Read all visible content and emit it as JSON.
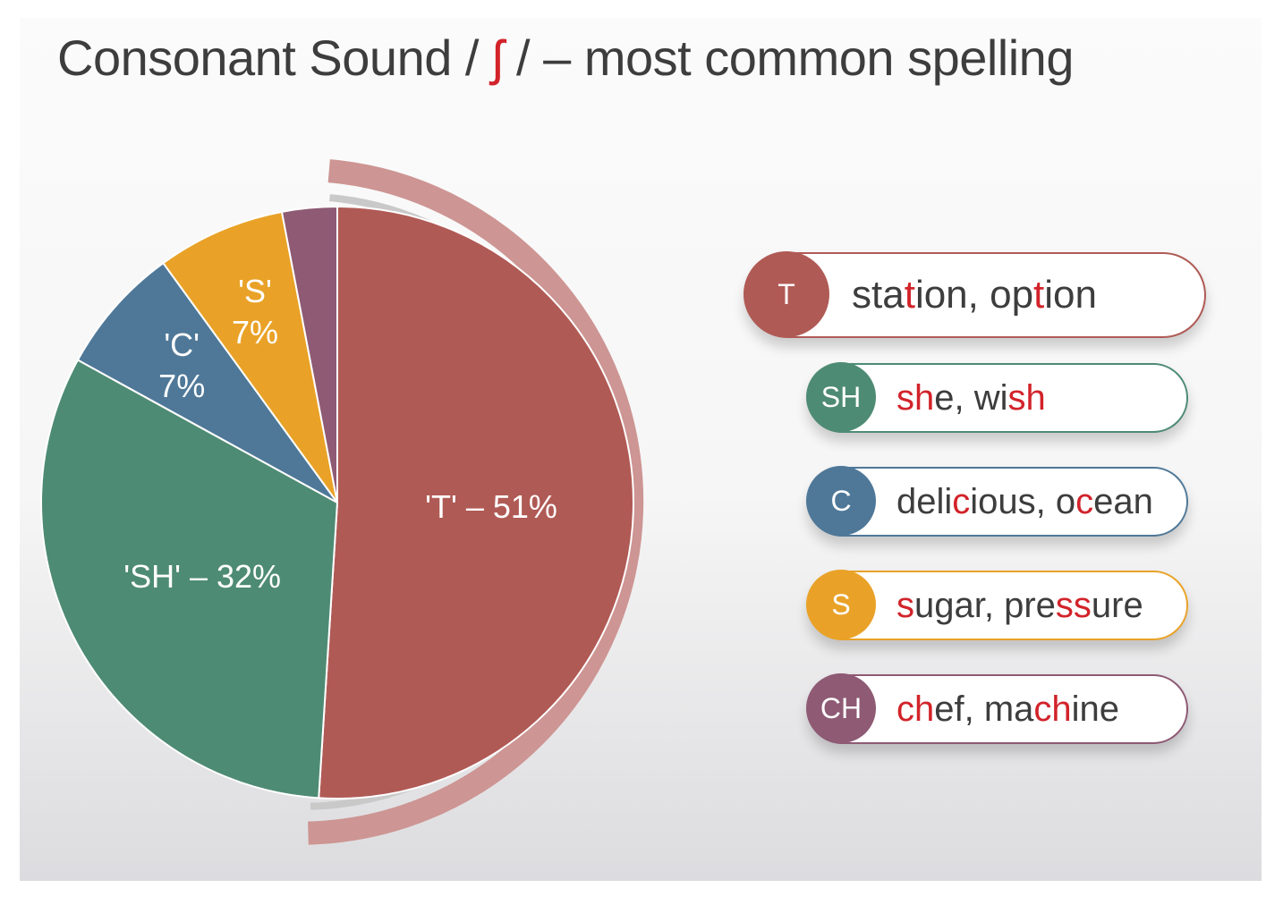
{
  "title": {
    "before": "Consonant Sound / ",
    "ipa": "ʃ",
    "after": " / – most common spelling"
  },
  "chart_data": {
    "type": "pie",
    "title": "Consonant Sound / ʃ / – most common spelling",
    "slices": [
      {
        "label": "'T'",
        "value": 51,
        "value_label": "51%",
        "display": "'T' – 51%",
        "color": "#b05a55"
      },
      {
        "label": "'SH'",
        "value": 32,
        "value_label": "32%",
        "display": "'SH' – 32%",
        "color": "#4e8b74"
      },
      {
        "label": "'C'",
        "value": 7,
        "value_label": "7%",
        "display": "'C'\n7%",
        "color": "#4f7898"
      },
      {
        "label": "'S'",
        "value": 7,
        "value_label": "7%",
        "display": "'S'\n7%",
        "color": "#e9a227"
      },
      {
        "label": "'CH'",
        "value": 3,
        "value_label": "",
        "display": "",
        "color": "#8e5a74"
      }
    ]
  },
  "legend": [
    {
      "badge": "T",
      "color": "#b05a55",
      "parts": [
        {
          "t": "sta"
        },
        {
          "t": "t",
          "hl": true
        },
        {
          "t": "ion, op"
        },
        {
          "t": "t",
          "hl": true
        },
        {
          "t": "ion"
        }
      ]
    },
    {
      "badge": "SH",
      "color": "#4e8b74",
      "parts": [
        {
          "t": "sh",
          "hl": true
        },
        {
          "t": "e, wi"
        },
        {
          "t": "sh",
          "hl": true
        }
      ]
    },
    {
      "badge": "C",
      "color": "#4f7898",
      "parts": [
        {
          "t": "deli"
        },
        {
          "t": "c",
          "hl": true
        },
        {
          "t": "ious, o"
        },
        {
          "t": "c",
          "hl": true
        },
        {
          "t": "ean"
        }
      ]
    },
    {
      "badge": "S",
      "color": "#e9a227",
      "parts": [
        {
          "t": "s",
          "hl": true
        },
        {
          "t": "ugar, pre"
        },
        {
          "t": "ss",
          "hl": true
        },
        {
          "t": "ure"
        }
      ]
    },
    {
      "badge": "CH",
      "color": "#8e5a74",
      "parts": [
        {
          "t": "ch",
          "hl": true
        },
        {
          "t": "ef, ma"
        },
        {
          "t": "ch",
          "hl": true
        },
        {
          "t": "ine"
        }
      ]
    }
  ],
  "colors": {
    "title_text": "#3d3d3d",
    "highlight": "#d2232a",
    "arc_outer": "#cd9593",
    "arc_inner": "#c9c9c9"
  }
}
